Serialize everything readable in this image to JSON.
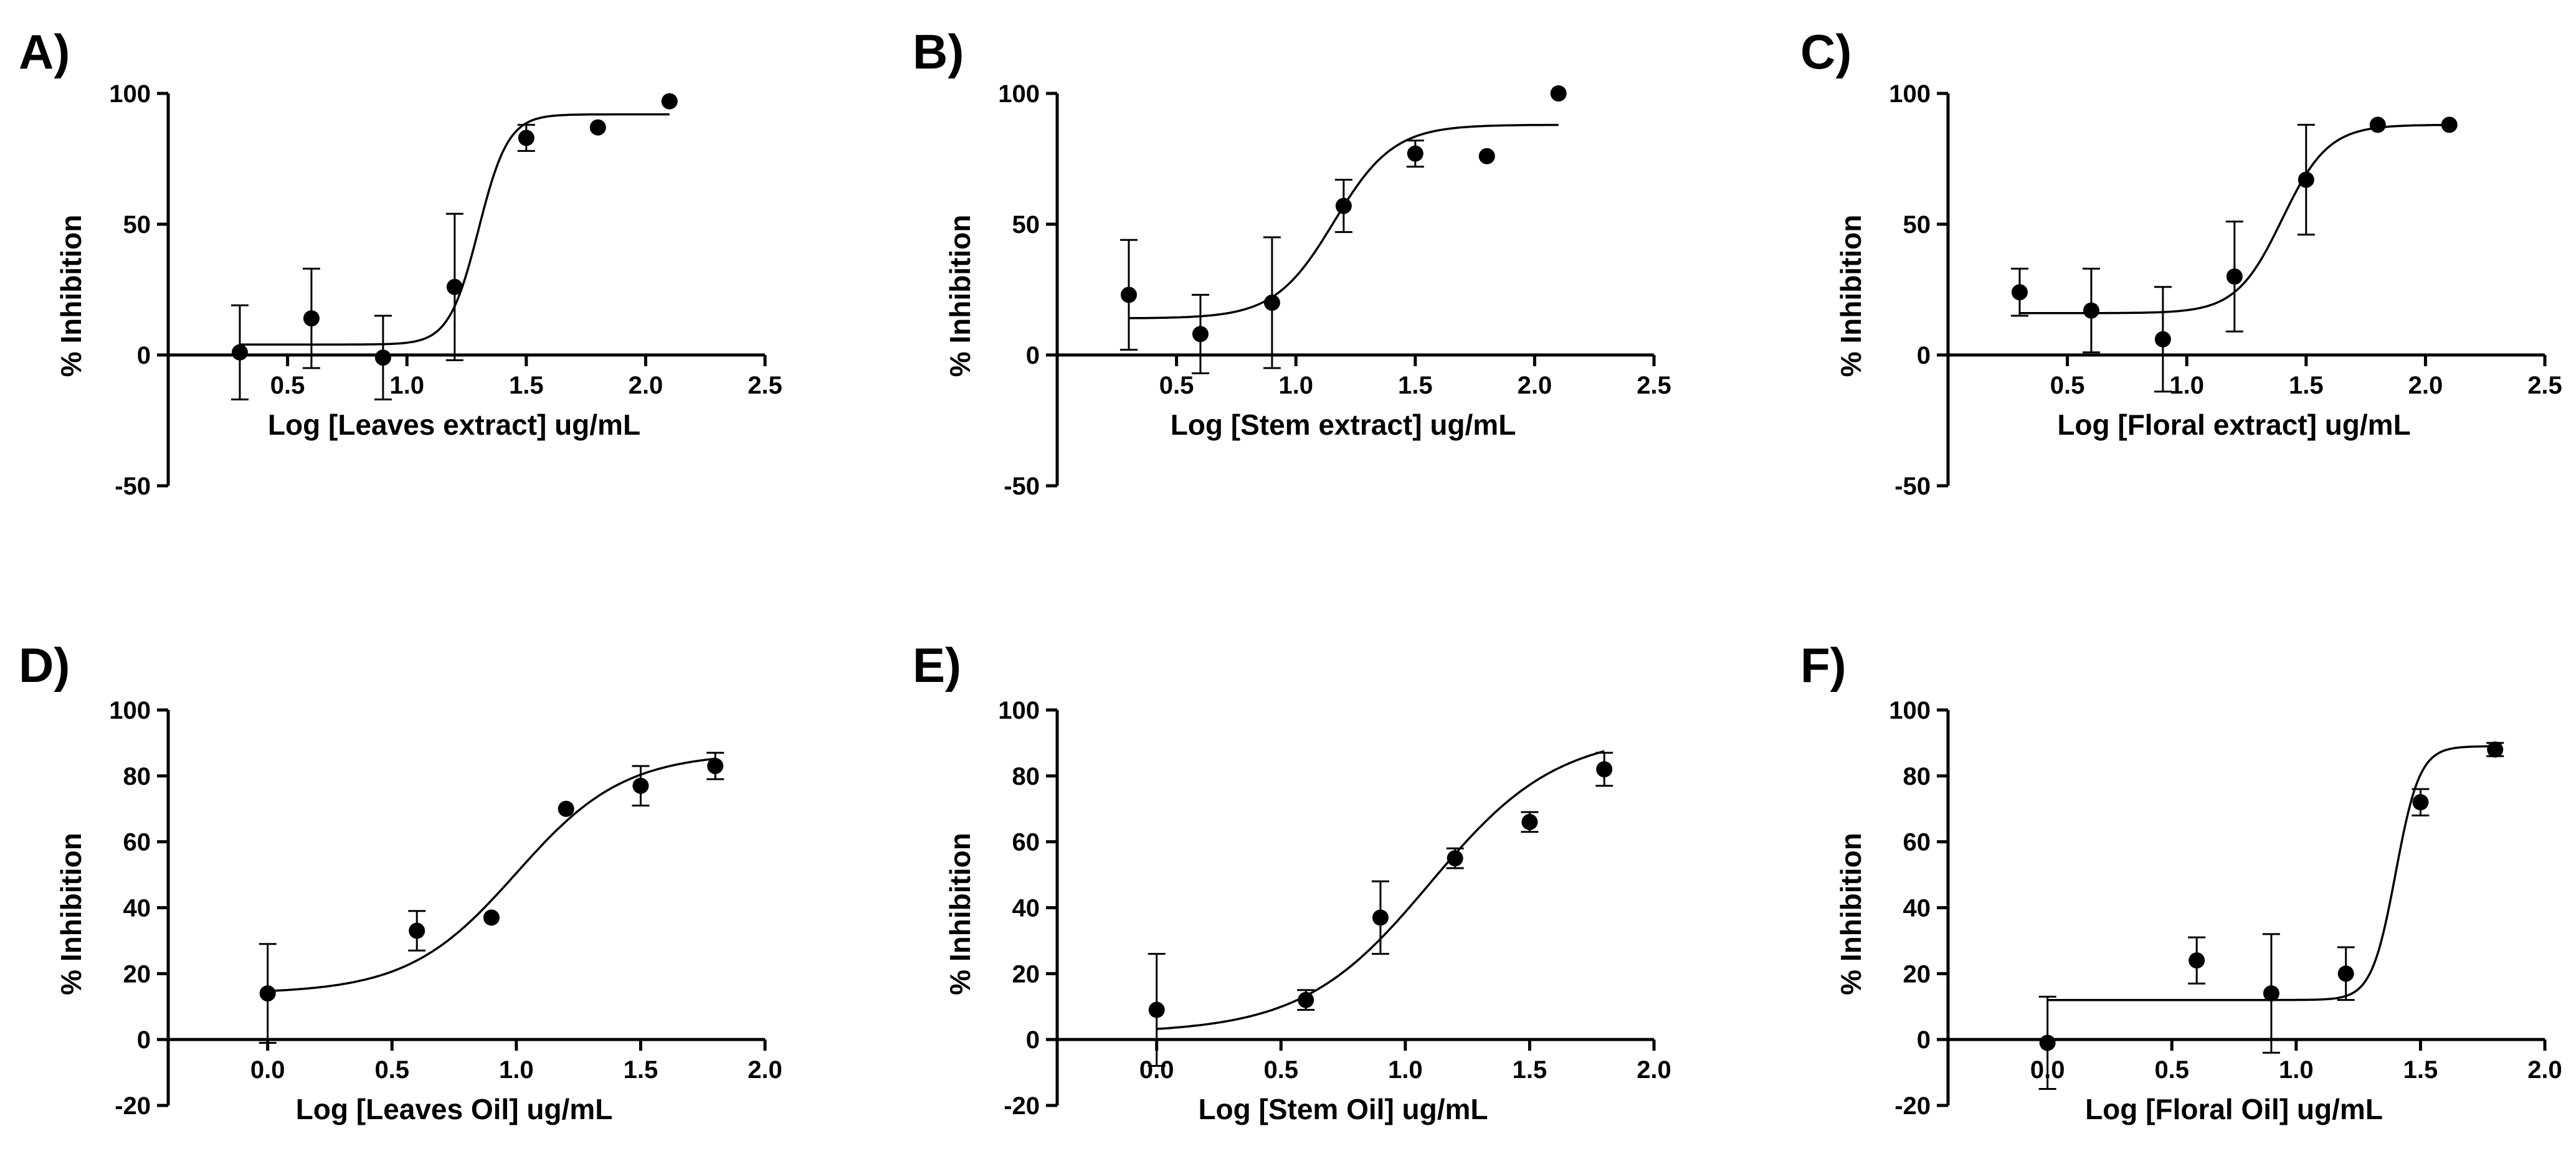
{
  "chart_data": [
    {
      "type": "scatter",
      "panel": "A)",
      "xlabel": "Log [Leaves extract] ug/mL",
      "ylabel": "% Inhibition",
      "xlim": [
        0,
        2.5
      ],
      "ylim": [
        -50,
        100
      ],
      "x_ticks": [
        0.5,
        1.0,
        1.5,
        2.0,
        2.5
      ],
      "y_ticks": [
        -50,
        0,
        50,
        100
      ],
      "x": [
        0.3,
        0.6,
        0.9,
        1.2,
        1.5,
        1.8,
        2.1
      ],
      "y": [
        1,
        14,
        -1,
        26,
        83,
        87,
        97
      ],
      "err": [
        18,
        19,
        16,
        28,
        5,
        0,
        0
      ],
      "fit": {
        "bottom": 4,
        "top": 92,
        "logEC50": 1.3,
        "hill": 7
      }
    },
    {
      "type": "scatter",
      "panel": "B)",
      "xlabel": "Log [Stem extract] ug/mL",
      "ylabel": "% Inhibition",
      "xlim": [
        0,
        2.5
      ],
      "ylim": [
        -50,
        100
      ],
      "x_ticks": [
        0.5,
        1.0,
        1.5,
        2.0,
        2.5
      ],
      "y_ticks": [
        -50,
        0,
        50,
        100
      ],
      "x": [
        0.3,
        0.6,
        0.9,
        1.2,
        1.5,
        1.8,
        2.1
      ],
      "y": [
        23,
        8,
        20,
        57,
        77,
        76,
        100
      ],
      "err": [
        21,
        15,
        25,
        10,
        5,
        0,
        0
      ],
      "fit": {
        "bottom": 14,
        "top": 88,
        "logEC50": 1.16,
        "hill": 3.5
      }
    },
    {
      "type": "scatter",
      "panel": "C)",
      "xlabel": "Log [Floral extract] ug/mL",
      "ylabel": "% Inhibition",
      "xlim": [
        0,
        2.5
      ],
      "ylim": [
        -50,
        100
      ],
      "x_ticks": [
        0.5,
        1.0,
        1.5,
        2.0,
        2.5
      ],
      "y_ticks": [
        -50,
        0,
        50,
        100
      ],
      "x": [
        0.3,
        0.6,
        0.9,
        1.2,
        1.5,
        1.8,
        2.1
      ],
      "y": [
        24,
        17,
        6,
        30,
        67,
        88,
        88
      ],
      "err": [
        9,
        16,
        20,
        21,
        21,
        0,
        0
      ],
      "fit": {
        "bottom": 16,
        "top": 88,
        "logEC50": 1.4,
        "hill": 4.5
      }
    },
    {
      "type": "scatter",
      "panel": "D)",
      "xlabel": "Log [Leaves Oil] ug/mL",
      "ylabel": "% Inhibition",
      "xlim": [
        -0.4,
        2.0
      ],
      "ylim": [
        -20,
        100
      ],
      "x_ticks": [
        0.0,
        0.5,
        1.0,
        1.5,
        2.0
      ],
      "y_ticks": [
        -20,
        0,
        20,
        40,
        60,
        80,
        100
      ],
      "x": [
        0.0,
        0.6,
        0.9,
        1.2,
        1.5,
        1.8
      ],
      "y": [
        14,
        33,
        37,
        70,
        77,
        83
      ],
      "err": [
        15,
        6,
        0,
        0,
        6,
        4
      ],
      "fit": {
        "bottom": 14,
        "top": 87,
        "logEC50": 1.0,
        "hill": 2.0
      }
    },
    {
      "type": "scatter",
      "panel": "E)",
      "xlabel": "Log [Stem Oil] ug/mL",
      "ylabel": "% Inhibition",
      "xlim": [
        -0.4,
        2.0
      ],
      "ylim": [
        -20,
        100
      ],
      "x_ticks": [
        0.0,
        0.5,
        1.0,
        1.5,
        2.0
      ],
      "y_ticks": [
        -20,
        0,
        20,
        40,
        60,
        80,
        100
      ],
      "x": [
        0.0,
        0.6,
        0.9,
        1.2,
        1.5,
        1.8
      ],
      "y": [
        9,
        12,
        37,
        55,
        66,
        82
      ],
      "err": [
        17,
        3,
        11,
        3,
        3,
        5
      ],
      "fit": {
        "bottom": 2,
        "top": 93,
        "logEC50": 1.1,
        "hill": 1.7
      }
    },
    {
      "type": "scatter",
      "panel": "F)",
      "xlabel": "Log [Floral Oil] ug/mL",
      "ylabel": "% Inhibition",
      "xlim": [
        -0.4,
        2.0
      ],
      "ylim": [
        -20,
        100
      ],
      "x_ticks": [
        0.0,
        0.5,
        1.0,
        1.5,
        2.0
      ],
      "y_ticks": [
        -20,
        0,
        20,
        40,
        60,
        80,
        100
      ],
      "x": [
        0.0,
        0.6,
        0.9,
        1.2,
        1.5,
        1.8
      ],
      "y": [
        -1,
        24,
        14,
        20,
        72,
        88
      ],
      "err": [
        14,
        7,
        18,
        8,
        4,
        2
      ],
      "fit": {
        "bottom": 12,
        "top": 89,
        "logEC50": 1.4,
        "hill": 9
      }
    }
  ]
}
